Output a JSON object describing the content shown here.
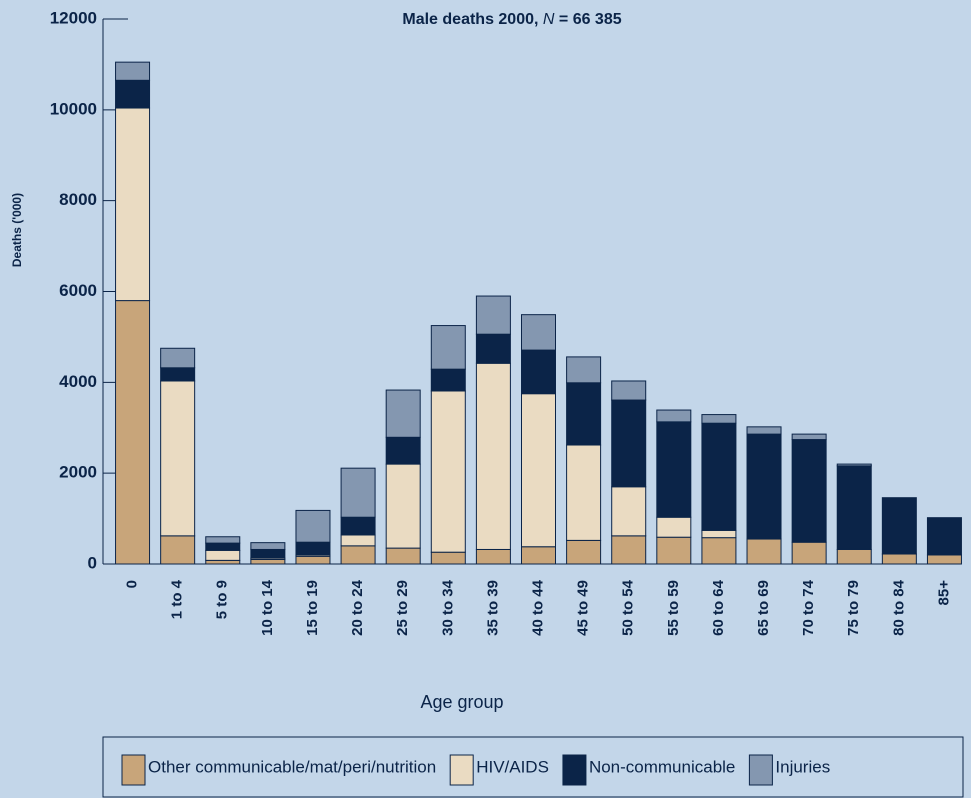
{
  "chart_data": {
    "type": "stacked_bar",
    "title_parts": [
      "Male deaths 2000, ",
      "N",
      " = 66 385"
    ],
    "y_label": "Deaths ('000)",
    "x_label": "Age group",
    "categories": [
      "0",
      "1 to 4",
      "5 to 9",
      "10 to 14",
      "15 to 19",
      "20 to 24",
      "25 to 29",
      "30 to 34",
      "35 to 39",
      "40 to 44",
      "45 to 49",
      "50 to 54",
      "55 to 59",
      "60 to 64",
      "65 to 69",
      "70 to 74",
      "75 to 79",
      "80 to 84",
      "85+"
    ],
    "series": [
      {
        "name": "Other communicable/mat/peri/nutrition",
        "color": "#c8a57a",
        "values": [
          5800,
          620,
          80,
          100,
          170,
          400,
          350,
          260,
          320,
          380,
          520,
          620,
          590,
          580,
          550,
          480,
          320,
          220,
          200
        ]
      },
      {
        "name": "HIV/AIDS",
        "color": "#eadbc2",
        "values": [
          4240,
          3410,
          220,
          30,
          30,
          240,
          1850,
          3550,
          4100,
          3370,
          2100,
          1080,
          440,
          160,
          10,
          0,
          0,
          0,
          0
        ]
      },
      {
        "name": "Non-communicable",
        "color": "#0b2448",
        "values": [
          610,
          290,
          160,
          190,
          280,
          390,
          590,
          480,
          640,
          960,
          1370,
          1910,
          2100,
          2360,
          2300,
          2260,
          1840,
          1240,
          820
        ]
      },
      {
        "name": "Injuries",
        "color": "#8497b0",
        "values": [
          400,
          430,
          140,
          150,
          700,
          1080,
          1040,
          960,
          840,
          780,
          570,
          420,
          260,
          190,
          160,
          120,
          40,
          0,
          0
        ]
      }
    ],
    "ylim": [
      0,
      12000
    ],
    "yticks": [
      0,
      2000,
      4000,
      6000,
      8000,
      10000,
      12000
    ]
  }
}
